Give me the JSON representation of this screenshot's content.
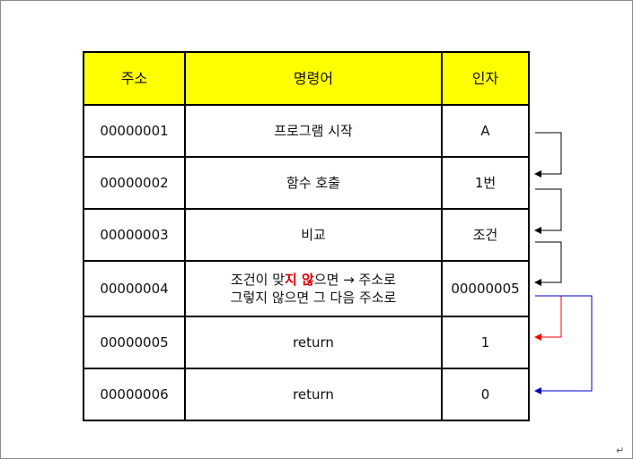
{
  "table": {
    "headers": [
      "주소",
      "명령어",
      "인자"
    ],
    "rows": [
      {
        "address": "00000001",
        "instruction": "프로그램 시작",
        "argument": "A"
      },
      {
        "address": "00000002",
        "instruction": "함수 호출",
        "argument": "1번"
      },
      {
        "address": "00000003",
        "instruction": "비교",
        "argument": "조건"
      },
      {
        "address": "00000004",
        "instruction_line1_pre": "조건이 맞",
        "instruction_line1_red": "지 않",
        "instruction_line1_post": "으면 → 주소로",
        "instruction_line2": "그렇지 않으면 그 다음 주소로",
        "argument": "00000005"
      },
      {
        "address": "00000005",
        "instruction": "return",
        "argument": "1"
      },
      {
        "address": "00000006",
        "instruction": "return",
        "argument": "0"
      }
    ]
  },
  "colors": {
    "header_bg": "#ffff00",
    "arrow_default": "#000000",
    "arrow_branch_taken": "#ff0000",
    "arrow_branch_else": "#0000cc",
    "highlight_text": "#e00000"
  },
  "footer": {
    "paragraph_mark": "↵"
  }
}
